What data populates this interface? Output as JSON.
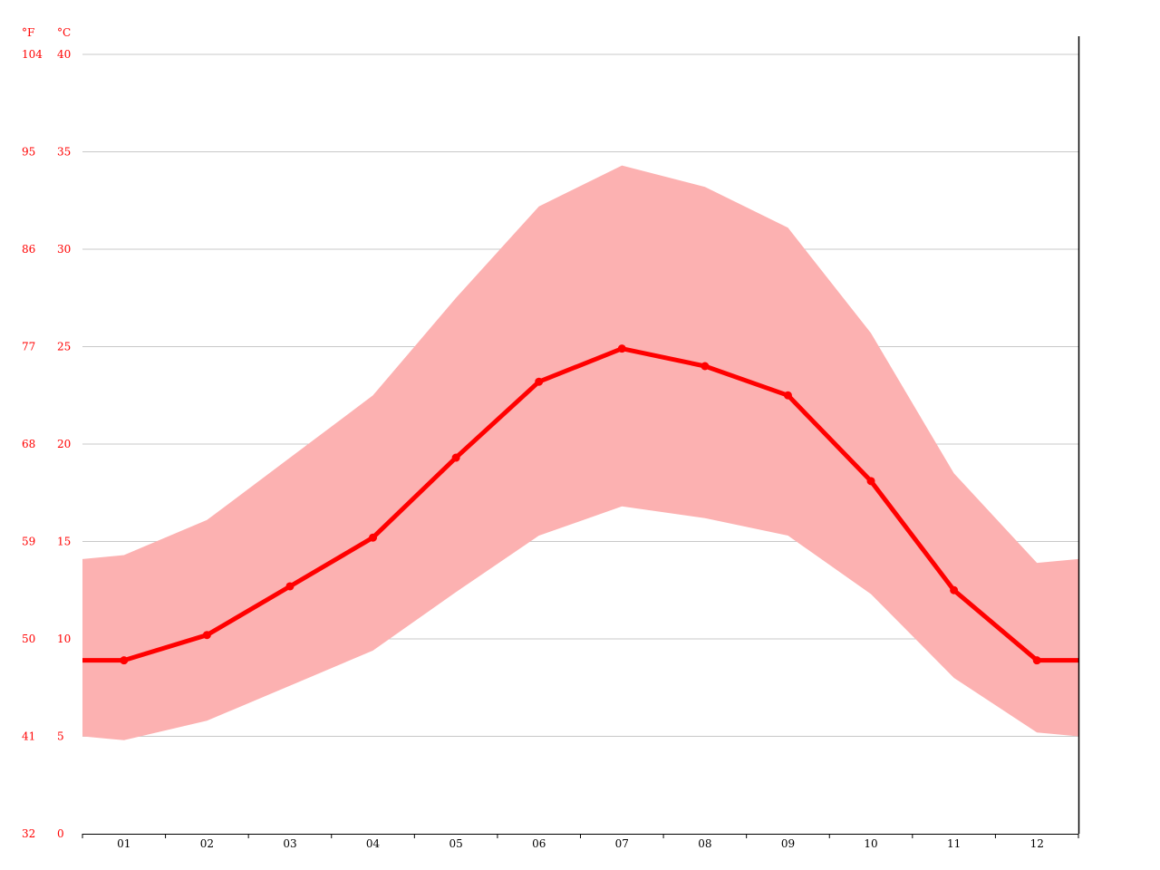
{
  "chart_data": {
    "type": "area",
    "categories": [
      "01",
      "02",
      "03",
      "04",
      "05",
      "06",
      "07",
      "08",
      "09",
      "10",
      "11",
      "12"
    ],
    "series": [
      {
        "values": [
          8.9,
          10.2,
          12.7,
          15.2,
          19.3,
          23.2,
          24.9,
          24.0,
          22.5,
          18.1,
          12.5,
          8.9
        ]
      },
      {
        "values": [
          14.3,
          16.1,
          19.3,
          22.5,
          27.5,
          32.2,
          34.3,
          33.2,
          31.1,
          25.7,
          18.5,
          13.9
        ]
      },
      {
        "values": [
          4.8,
          5.8,
          7.6,
          9.4,
          12.4,
          15.3,
          16.8,
          16.2,
          15.3,
          12.3,
          8.0,
          5.2
        ]
      }
    ],
    "edge_values": {
      "left": {
        "mean": 8.9,
        "high": 14.1,
        "low": 5.0
      },
      "right": {
        "mean": 8.9,
        "high": 14.1,
        "low": 5.0
      }
    },
    "y_unit_celsius": "°C",
    "y_unit_fahrenheit": "°F",
    "y_ticks_celsius": [
      "0",
      "5",
      "10",
      "15",
      "20",
      "25",
      "30",
      "35",
      "40"
    ],
    "y_ticks_fahrenheit": [
      "32",
      "41",
      "50",
      "59",
      "68",
      "77",
      "86",
      "95",
      "104"
    ],
    "ylim": [
      0,
      40
    ],
    "grid": true,
    "colors": {
      "line": "#ff0000",
      "band": "#fcb1b1",
      "grid": "#c8c8c8",
      "axis_labels": "#ff0000",
      "x_labels": "#000000",
      "axes": "#000000"
    }
  }
}
